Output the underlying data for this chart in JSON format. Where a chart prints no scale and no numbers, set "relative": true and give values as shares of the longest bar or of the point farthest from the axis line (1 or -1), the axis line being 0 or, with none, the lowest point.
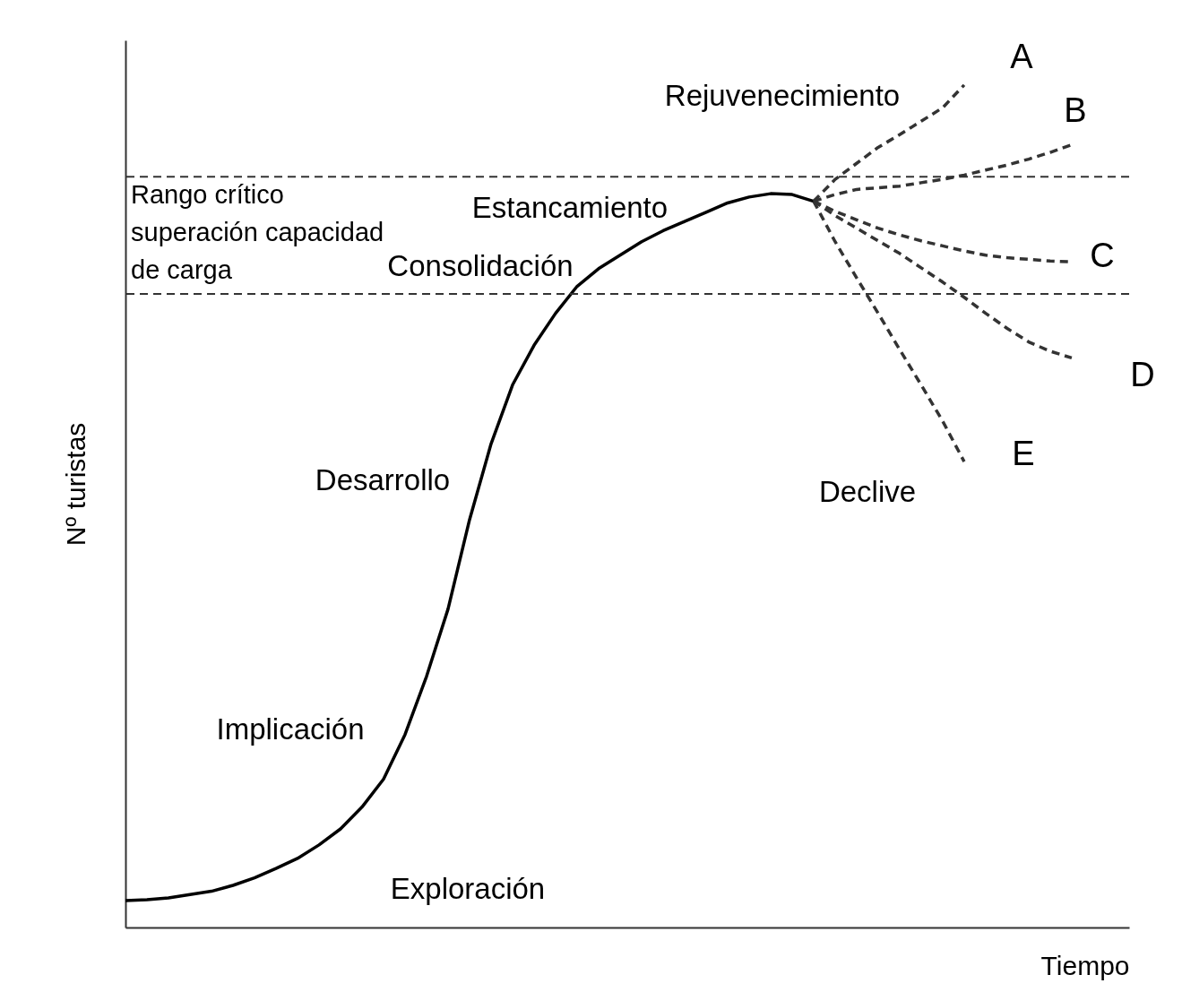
{
  "chart_data": {
    "type": "line",
    "relative": true,
    "xlabel": "Tiempo",
    "ylabel": "Nº turistas",
    "grid": false,
    "legend": false,
    "marker": "none",
    "categories": [
      null,
      null,
      null,
      null,
      null,
      null,
      null,
      null,
      null,
      null,
      null,
      null,
      null,
      null,
      null,
      null,
      null,
      null,
      null,
      null,
      null,
      null,
      null,
      null,
      null,
      null,
      null,
      null,
      null,
      null,
      null,
      null,
      null,
      null,
      null,
      null,
      null,
      null,
      null,
      null,
      null,
      null,
      null,
      null,
      null,
      null
    ],
    "series": [
      {
        "color": "#000000",
        "line_style": "solid",
        "values": [
          0.032,
          0.033,
          0.035,
          0.039,
          0.043,
          0.05,
          0.059,
          0.07,
          0.082,
          0.098,
          0.117,
          0.143,
          0.176,
          0.229,
          0.298,
          0.378,
          0.484,
          0.574,
          0.644,
          0.691,
          0.729,
          0.761,
          0.782,
          0.798,
          0.814,
          0.827,
          0.838,
          0.849,
          0.86,
          0.867,
          0.871,
          0.87,
          0.862,
          null,
          null,
          null,
          null,
          null,
          null,
          null,
          null,
          null,
          null,
          null,
          null,
          null
        ]
      },
      {
        "name": "A",
        "color": "#333333",
        "line_style": "dashed",
        "values": [
          null,
          null,
          null,
          null,
          null,
          null,
          null,
          null,
          null,
          null,
          null,
          null,
          null,
          null,
          null,
          null,
          null,
          null,
          null,
          null,
          null,
          null,
          null,
          null,
          null,
          null,
          null,
          null,
          null,
          null,
          null,
          null,
          0.862,
          0.888,
          0.907,
          0.926,
          0.941,
          0.957,
          0.973,
          1.0,
          null,
          null,
          null,
          null,
          null,
          null
        ]
      },
      {
        "name": "B",
        "color": "#333333",
        "line_style": "dashed",
        "values": [
          null,
          null,
          null,
          null,
          null,
          null,
          null,
          null,
          null,
          null,
          null,
          null,
          null,
          null,
          null,
          null,
          null,
          null,
          null,
          null,
          null,
          null,
          null,
          null,
          null,
          null,
          null,
          null,
          null,
          null,
          null,
          null,
          0.862,
          0.87,
          0.876,
          0.878,
          0.88,
          0.884,
          0.888,
          0.893,
          0.899,
          0.905,
          0.912,
          0.92,
          0.929,
          null
        ]
      },
      {
        "name": "C",
        "color": "#333333",
        "line_style": "dashed",
        "values": [
          null,
          null,
          null,
          null,
          null,
          null,
          null,
          null,
          null,
          null,
          null,
          null,
          null,
          null,
          null,
          null,
          null,
          null,
          null,
          null,
          null,
          null,
          null,
          null,
          null,
          null,
          null,
          null,
          null,
          null,
          null,
          null,
          0.862,
          0.85,
          0.84,
          0.83,
          0.822,
          0.815,
          0.809,
          0.803,
          0.798,
          0.795,
          0.793,
          0.791,
          0.79,
          null
        ]
      },
      {
        "name": "D",
        "color": "#333333",
        "line_style": "dashed",
        "values": [
          null,
          null,
          null,
          null,
          null,
          null,
          null,
          null,
          null,
          null,
          null,
          null,
          null,
          null,
          null,
          null,
          null,
          null,
          null,
          null,
          null,
          null,
          null,
          null,
          null,
          null,
          null,
          null,
          null,
          null,
          null,
          null,
          0.862,
          0.845,
          0.83,
          0.815,
          0.8,
          0.783,
          0.766,
          0.748,
          0.729,
          0.711,
          0.695,
          0.684,
          0.676,
          null
        ]
      },
      {
        "name": "E",
        "color": "#333333",
        "line_style": "dashed",
        "values": [
          null,
          null,
          null,
          null,
          null,
          null,
          null,
          null,
          null,
          null,
          null,
          null,
          null,
          null,
          null,
          null,
          null,
          null,
          null,
          null,
          null,
          null,
          null,
          null,
          null,
          null,
          null,
          null,
          null,
          null,
          null,
          null,
          0.862,
          0.814,
          0.771,
          0.729,
          0.686,
          0.644,
          0.601,
          0.553,
          null,
          null,
          null,
          null,
          null,
          null
        ]
      }
    ],
    "ref_lines": [
      {
        "axis": "y",
        "value": 0.891,
        "color": "#333333",
        "line_style": "dashed"
      },
      {
        "axis": "y",
        "value": 0.752,
        "color": "#333333",
        "line_style": "dashed"
      }
    ],
    "annotations": [
      "Rejuvenecimiento",
      "Estancamiento",
      "Consolidación",
      "Desarrollo",
      "Implicación",
      "Exploración",
      "Declive",
      "Rango crítico\nsuperación capacidad\nde carga"
    ]
  }
}
